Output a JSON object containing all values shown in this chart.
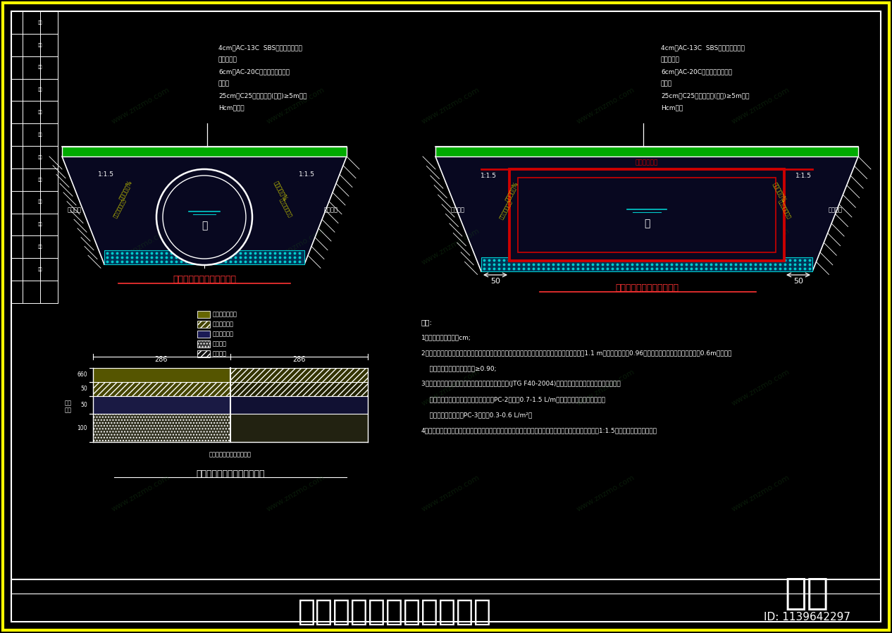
{
  "bg_color": "#000000",
  "border_color": "#ffff00",
  "inner_border_color": "#ffffff",
  "title": "管涵顶面路面恢复结构图",
  "title_color": "#ffffff",
  "id_text": "ID: 1139642297",
  "id_color": "#ffffff",
  "brand_text": "知末",
  "brand_color": "#ffffff",
  "drawing_color": "#ffffff",
  "green_layer_color": "#00aa00",
  "cyan_layer_color": "#00cccc",
  "red_box_color": "#cc0000",
  "yellow_text_color": "#cccc00",
  "label1": "五一路管涵顶面路面结构图",
  "label2": "五一路箱涵顶面路面结构图",
  "note_title": "备注:",
  "struct_label": "新旧沥青路面基层搭接处理图",
  "top_text_left": [
    "4cm厚AC-13C  SBS改性沥青混凝土",
    "沥青粘层油",
    "6cm厚AC-20C中粒式沥青混凝土",
    "透层油",
    "25cm厚C25水泥混凝土(毛面)≥5m一缝",
    "Hcm厚土石"
  ],
  "top_text_right": [
    "4cm厚AC-13C  SBS改性沥青混凝土",
    "沥青粘层油",
    "6cm厚AC-20C中粒式沥青混凝土",
    "透层油",
    "25cm厚C25水泥混凝土(毛面)≥5m一缝",
    "Hcm土石"
  ],
  "notes": [
    "备注:",
    "1、本图尺寸单位均为cm;",
    "2、管涵填土：沿涵管管壁、壁角均沿管均匀填筑，采用细粒土或透水性填料压实填筑，填充大于1.1 m，压实度不小于0.96，管涵上不能大的车辆，管涵顶以0.6m覆填料土",
    "    采用人工填筑施工，压实度≥0.90;",
    "3、沥青混凝土按照《公路沥青路面施工技术规范》(JTG F40-2004)施工，铺筑沥青混凝土前，先清扫基层",
    "    混凝土上均匀喷洒，喷洒沥青粘层油型PC-2，用量0.7-1.5 L/m；新建路基上采用沥青透层油",
    "    处，喷洒通透层油型PC-3，用量0.3-0.6 L/m²。",
    "4、原旧路面和新建路面基础施工路基处理，松软处填筑，旧路面处理一基一层共同工程范围内。具体比例1:1.5，最后冻融面部的铺筑。"
  ]
}
